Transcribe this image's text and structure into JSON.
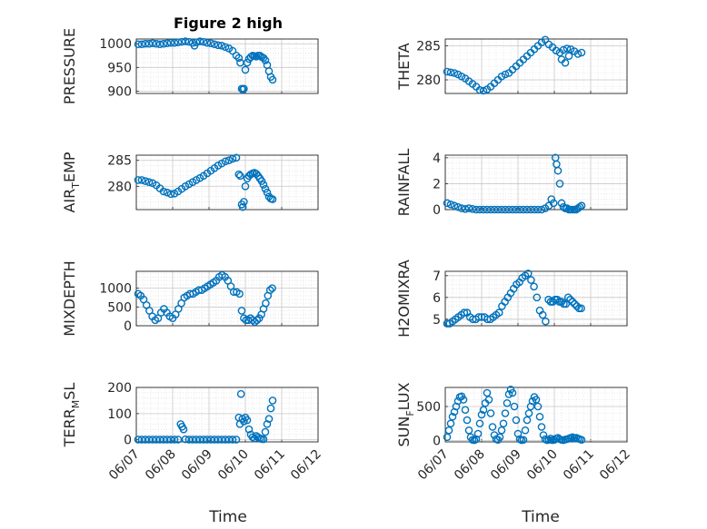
{
  "figure": {
    "title": "Figure 2 high",
    "marker_color": "#0072BD",
    "x_ticks": [
      "06/07",
      "06/08",
      "06/09",
      "06/10",
      "06/11",
      "06/12"
    ],
    "x_label": "Time"
  },
  "chart_data": [
    {
      "type": "scatter",
      "id": "pressure",
      "title": "Figure 2 high",
      "ylabel": "PRESSURE",
      "ylim": [
        895,
        1010
      ],
      "yticks": [
        900,
        950,
        1000
      ],
      "xlim": [
        0,
        5
      ],
      "x_ticks": [
        "06/07",
        "06/08",
        "06/09",
        "06/10",
        "06/11",
        "06/12"
      ],
      "grid": true,
      "minor_grid": true,
      "x": [
        0.05,
        0.15,
        0.25,
        0.35,
        0.45,
        0.55,
        0.65,
        0.75,
        0.85,
        0.95,
        1.05,
        1.15,
        1.25,
        1.35,
        1.45,
        1.55,
        1.65,
        1.75,
        1.85,
        1.95,
        2.05,
        2.15,
        2.25,
        2.35,
        2.45,
        2.55,
        2.65,
        2.75,
        2.82,
        2.86,
        2.9,
        2.93,
        2.96,
        3.0,
        3.05,
        3.1,
        3.15,
        3.2,
        3.25,
        3.3,
        3.35,
        3.4,
        3.45,
        3.5,
        3.55,
        3.6,
        3.65,
        3.7,
        3.75
      ],
      "y": [
        999,
        999,
        1000,
        1000,
        1001,
        1000,
        999,
        1000,
        1001,
        1002,
        1002,
        1003,
        1004,
        1005,
        1004,
        1002,
        1003,
        1005,
        1004,
        1002,
        1001,
        999,
        997,
        996,
        993,
        990,
        985,
        975,
        970,
        960,
        905,
        903,
        905,
        945,
        960,
        968,
        972,
        975,
        974,
        973,
        975,
        975,
        972,
        970,
        965,
        955,
        942,
        930,
        924
      ],
      "x_extra": [
        1.6
      ],
      "y_extra": [
        996
      ]
    },
    {
      "type": "scatter",
      "id": "theta",
      "ylabel": "THETA",
      "ylim": [
        278,
        286
      ],
      "yticks": [
        280,
        285
      ],
      "xlim": [
        0,
        5
      ],
      "x_ticks": [
        "06/07",
        "06/08",
        "06/09",
        "06/10",
        "06/11",
        "06/12"
      ],
      "grid": true,
      "minor_grid": true,
      "x": [
        0.05,
        0.15,
        0.25,
        0.35,
        0.45,
        0.55,
        0.65,
        0.75,
        0.85,
        0.95,
        1.05,
        1.15,
        1.25,
        1.35,
        1.45,
        1.55,
        1.65,
        1.75,
        1.85,
        1.95,
        2.05,
        2.15,
        2.25,
        2.35,
        2.45,
        2.55,
        2.65,
        2.75,
        2.85,
        2.95,
        3.05,
        3.15,
        3.25,
        3.35,
        3.45,
        3.55,
        3.65,
        3.75,
        3.2,
        3.3,
        3.4
      ],
      "y": [
        281.2,
        281.1,
        281.0,
        280.8,
        280.5,
        280.2,
        279.8,
        279.4,
        279.0,
        278.5,
        278.4,
        278.6,
        279.0,
        279.5,
        280.0,
        280.5,
        280.8,
        281.0,
        281.5,
        282.0,
        282.5,
        283.0,
        283.5,
        284.0,
        284.5,
        285.0,
        285.5,
        285.9,
        285.2,
        284.8,
        284.3,
        284.0,
        284.4,
        284.6,
        284.5,
        284.2,
        283.8,
        284.0,
        283.0,
        282.5,
        283.5
      ]
    },
    {
      "type": "scatter",
      "id": "air_temp",
      "ylabel": "AIR_TEMP",
      "ylabel_parts": [
        "AIR",
        "T",
        "EMP"
      ],
      "ylim": [
        275.5,
        286
      ],
      "yticks": [
        280,
        285
      ],
      "xlim": [
        0,
        5
      ],
      "x_ticks": [
        "06/07",
        "06/08",
        "06/09",
        "06/10",
        "06/11",
        "06/12"
      ],
      "grid": true,
      "minor_grid": true,
      "x": [
        0.05,
        0.15,
        0.25,
        0.35,
        0.45,
        0.55,
        0.65,
        0.75,
        0.85,
        0.95,
        1.05,
        1.15,
        1.25,
        1.35,
        1.45,
        1.55,
        1.65,
        1.75,
        1.85,
        1.95,
        2.05,
        2.15,
        2.25,
        2.35,
        2.45,
        2.55,
        2.65,
        2.75,
        2.82,
        2.86,
        2.9,
        2.93,
        2.96,
        3.0,
        3.05,
        3.1,
        3.15,
        3.2,
        3.25,
        3.3,
        3.35,
        3.4,
        3.45,
        3.5,
        3.55,
        3.6,
        3.65,
        3.7,
        3.75
      ],
      "y": [
        281.2,
        281.2,
        281.0,
        280.8,
        280.6,
        280.2,
        279.6,
        279.0,
        278.8,
        278.5,
        278.6,
        279.0,
        279.5,
        280.0,
        280.4,
        280.8,
        281.2,
        281.6,
        282.0,
        282.5,
        283.0,
        283.5,
        284.0,
        284.4,
        284.8,
        285.0,
        285.3,
        285.5,
        282.3,
        282.0,
        276.5,
        276.0,
        277.0,
        280.0,
        281.5,
        282.0,
        282.3,
        282.5,
        282.6,
        282.4,
        282.0,
        281.5,
        281.0,
        280.3,
        279.5,
        278.8,
        278.0,
        277.6,
        277.5
      ]
    },
    {
      "type": "scatter",
      "id": "rainfall",
      "ylabel": "RAINFALL",
      "ylim": [
        0,
        4.2
      ],
      "yticks": [
        0,
        2,
        4
      ],
      "xlim": [
        0,
        5
      ],
      "x_ticks": [
        "06/07",
        "06/08",
        "06/09",
        "06/10",
        "06/11",
        "06/12"
      ],
      "grid": true,
      "minor_grid": true,
      "x": [
        0.05,
        0.15,
        0.25,
        0.35,
        0.45,
        0.55,
        0.65,
        0.75,
        0.85,
        0.95,
        1.05,
        1.15,
        1.25,
        1.35,
        1.45,
        1.55,
        1.65,
        1.75,
        1.85,
        1.95,
        2.05,
        2.15,
        2.25,
        2.35,
        2.45,
        2.55,
        2.65,
        2.75,
        2.85,
        2.92,
        2.98,
        3.03,
        3.06,
        3.1,
        3.15,
        3.2,
        3.25,
        3.3,
        3.35,
        3.4,
        3.45,
        3.5,
        3.55,
        3.6,
        3.65,
        3.7,
        3.75
      ],
      "y": [
        0.5,
        0.4,
        0.3,
        0.2,
        0.1,
        0.05,
        0.1,
        0.05,
        0,
        0,
        0,
        0,
        0,
        0,
        0,
        0,
        0,
        0,
        0,
        0,
        0,
        0,
        0,
        0,
        0,
        0,
        0,
        0.1,
        0.3,
        0.8,
        0.5,
        4.0,
        3.5,
        3.0,
        2.0,
        0.5,
        0.2,
        0.1,
        0.1,
        0,
        0,
        0,
        0,
        0,
        0.1,
        0.2,
        0.3
      ]
    },
    {
      "type": "scatter",
      "id": "mixdepth",
      "ylabel": "MIXDEPTH",
      "ylim": [
        0,
        1450
      ],
      "yticks": [
        0,
        500,
        1000
      ],
      "xlim": [
        0,
        5
      ],
      "x_ticks": [
        "06/07",
        "06/08",
        "06/09",
        "06/10",
        "06/11",
        "06/12"
      ],
      "grid": true,
      "minor_grid": true,
      "x": [
        0.05,
        0.12,
        0.2,
        0.28,
        0.36,
        0.44,
        0.52,
        0.6,
        0.68,
        0.76,
        0.84,
        0.92,
        1.0,
        1.08,
        1.16,
        1.24,
        1.32,
        1.4,
        1.48,
        1.56,
        1.64,
        1.72,
        1.8,
        1.88,
        1.96,
        2.04,
        2.12,
        2.2,
        2.28,
        2.36,
        2.44,
        2.52,
        2.6,
        2.68,
        2.76,
        2.84,
        2.9,
        2.96,
        3.02,
        3.08,
        3.14,
        3.2,
        3.26,
        3.32,
        3.38,
        3.44,
        3.5,
        3.56,
        3.62,
        3.68,
        3.74
      ],
      "y": [
        850,
        800,
        700,
        550,
        400,
        250,
        150,
        200,
        350,
        450,
        350,
        250,
        200,
        300,
        450,
        600,
        750,
        800,
        850,
        850,
        900,
        950,
        950,
        1000,
        1050,
        1100,
        1150,
        1200,
        1300,
        1350,
        1300,
        1200,
        1050,
        900,
        900,
        850,
        400,
        200,
        150,
        150,
        200,
        150,
        100,
        150,
        200,
        300,
        450,
        600,
        800,
        950,
        1000
      ]
    },
    {
      "type": "scatter",
      "id": "h2omixra",
      "ylabel": "H2OMIXRA",
      "ylim": [
        4.7,
        7.2
      ],
      "yticks": [
        5,
        6,
        7
      ],
      "xlim": [
        0,
        5
      ],
      "x_ticks": [
        "06/07",
        "06/08",
        "06/09",
        "06/10",
        "06/11",
        "06/12"
      ],
      "grid": true,
      "minor_grid": true,
      "x": [
        0.05,
        0.12,
        0.2,
        0.28,
        0.36,
        0.44,
        0.52,
        0.6,
        0.68,
        0.76,
        0.84,
        0.92,
        1.0,
        1.08,
        1.16,
        1.24,
        1.32,
        1.4,
        1.48,
        1.56,
        1.64,
        1.72,
        1.8,
        1.88,
        1.96,
        2.04,
        2.12,
        2.2,
        2.28,
        2.36,
        2.44,
        2.52,
        2.6,
        2.68,
        2.76,
        2.84,
        2.9,
        2.96,
        3.02,
        3.08,
        3.14,
        3.2,
        3.26,
        3.32,
        3.38,
        3.44,
        3.5,
        3.56,
        3.62,
        3.68,
        3.74
      ],
      "y": [
        4.8,
        4.8,
        4.9,
        5.0,
        5.1,
        5.2,
        5.3,
        5.3,
        5.1,
        5.0,
        5.0,
        5.1,
        5.1,
        5.1,
        5.0,
        5.0,
        5.1,
        5.2,
        5.3,
        5.6,
        5.8,
        6.0,
        6.2,
        6.4,
        6.6,
        6.7,
        6.9,
        7.0,
        7.1,
        6.8,
        6.5,
        6.0,
        5.4,
        5.2,
        4.9,
        5.9,
        5.8,
        5.8,
        5.9,
        5.9,
        5.8,
        5.8,
        5.7,
        5.7,
        6.0,
        5.9,
        5.8,
        5.7,
        5.6,
        5.5,
        5.5
      ]
    },
    {
      "type": "scatter",
      "id": "terr_msl",
      "ylabel": "TERR_MSL",
      "ylabel_parts": [
        "TERR",
        "M",
        "SL"
      ],
      "ylim": [
        -8,
        200
      ],
      "yticks": [
        0,
        100,
        200
      ],
      "xlim": [
        0,
        5
      ],
      "x_ticks": [
        "06/07",
        "06/08",
        "06/09",
        "06/10",
        "06/11",
        "06/12"
      ],
      "grid": true,
      "minor_grid": true,
      "x": [
        0.05,
        0.15,
        0.25,
        0.35,
        0.45,
        0.55,
        0.65,
        0.75,
        0.85,
        0.95,
        1.05,
        1.15,
        1.22,
        1.26,
        1.3,
        1.35,
        1.45,
        1.55,
        1.65,
        1.75,
        1.85,
        1.95,
        2.05,
        2.15,
        2.25,
        2.35,
        2.45,
        2.55,
        2.65,
        2.75,
        2.82,
        2.85,
        2.88,
        2.92,
        2.96,
        3.0,
        3.05,
        3.1,
        3.15,
        3.2,
        3.25,
        3.3,
        3.35,
        3.4,
        3.45,
        3.5,
        3.55,
        3.6,
        3.65,
        3.7,
        3.75
      ],
      "y": [
        1,
        1,
        1,
        1,
        1,
        1,
        1,
        1,
        1,
        1,
        1,
        1,
        60,
        50,
        40,
        2,
        1,
        1,
        1,
        1,
        1,
        1,
        1,
        1,
        1,
        1,
        1,
        1,
        1,
        1,
        85,
        60,
        175,
        80,
        70,
        85,
        75,
        40,
        20,
        10,
        5,
        15,
        10,
        5,
        3,
        2,
        30,
        60,
        80,
        120,
        150
      ]
    },
    {
      "type": "scatter",
      "id": "sun_flux",
      "ylabel": "SUN_FLUX",
      "ylabel_parts": [
        "SUN",
        "F",
        "LUX"
      ],
      "ylim": [
        -20,
        780
      ],
      "yticks": [
        0,
        500
      ],
      "xlim": [
        0,
        5
      ],
      "x_ticks": [
        "06/07",
        "06/08",
        "06/09",
        "06/10",
        "06/11",
        "06/12"
      ],
      "grid": true,
      "minor_grid": true,
      "x": [
        0.05,
        0.1,
        0.15,
        0.2,
        0.25,
        0.3,
        0.35,
        0.4,
        0.45,
        0.5,
        0.55,
        0.6,
        0.65,
        0.7,
        0.75,
        0.8,
        0.85,
        0.9,
        0.95,
        1.0,
        1.05,
        1.1,
        1.15,
        1.2,
        1.25,
        1.3,
        1.35,
        1.4,
        1.45,
        1.5,
        1.55,
        1.6,
        1.65,
        1.7,
        1.75,
        1.8,
        1.85,
        1.9,
        1.95,
        2.0,
        2.05,
        2.1,
        2.15,
        2.2,
        2.25,
        2.3,
        2.35,
        2.4,
        2.45,
        2.5,
        2.55,
        2.6,
        2.65,
        2.7,
        2.75,
        2.8,
        2.85,
        2.9,
        2.95,
        3.0,
        3.05,
        3.1,
        3.15,
        3.2,
        3.25,
        3.3,
        3.35,
        3.4,
        3.45,
        3.5,
        3.55,
        3.6,
        3.65,
        3.7,
        3.75
      ],
      "y": [
        50,
        150,
        250,
        350,
        420,
        500,
        580,
        640,
        650,
        600,
        450,
        300,
        150,
        50,
        10,
        5,
        20,
        100,
        250,
        380,
        450,
        550,
        700,
        600,
        400,
        200,
        80,
        20,
        10,
        50,
        150,
        250,
        400,
        550,
        680,
        750,
        700,
        500,
        300,
        100,
        20,
        5,
        10,
        150,
        300,
        400,
        500,
        580,
        640,
        600,
        500,
        350,
        200,
        80,
        20,
        5,
        10,
        30,
        5,
        10,
        30,
        40,
        20,
        10,
        5,
        15,
        20,
        30,
        40,
        50,
        30,
        40,
        30,
        20,
        10
      ]
    }
  ]
}
